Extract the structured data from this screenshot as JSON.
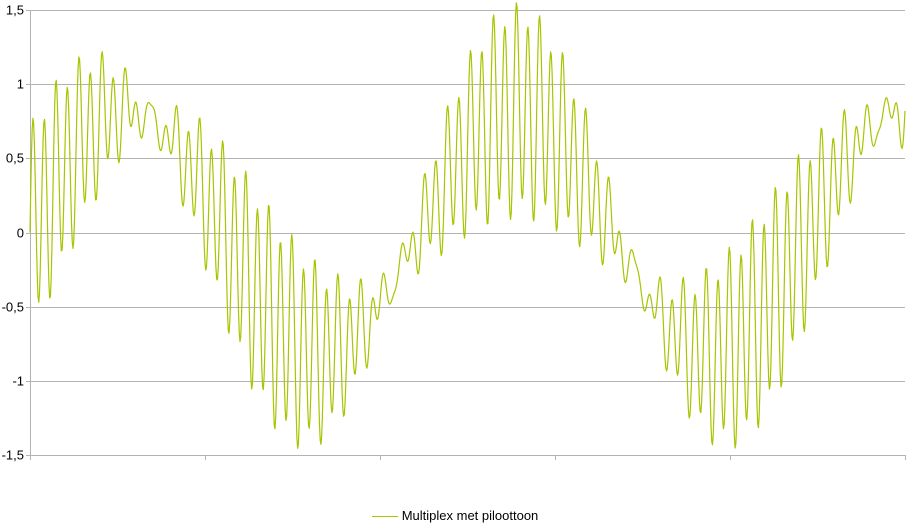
{
  "chart_data": {
    "type": "line",
    "title": "",
    "xlabel": "",
    "ylabel": "",
    "ylim": [
      -1.5,
      1.5
    ],
    "yticks": [
      {
        "value": 1.5,
        "label": "1,5"
      },
      {
        "value": 1,
        "label": "1"
      },
      {
        "value": 0.5,
        "label": "0,5"
      },
      {
        "value": 0,
        "label": "0"
      },
      {
        "value": -0.5,
        "label": "-0,5"
      },
      {
        "value": -1,
        "label": "-1"
      },
      {
        "value": -1.5,
        "label": "-1,5"
      }
    ],
    "x_tick_count": 5,
    "grid": true,
    "legend_position": "bottom",
    "series": [
      {
        "name": "Multiplex met piloottoon",
        "color": "#a9c400",
        "sample_count": 1200,
        "components": [
          {
            "kind": "sine",
            "amplitude": 0.82,
            "cycles": 2.25,
            "phase": 0.0
          },
          {
            "kind": "dsb",
            "amplitude": 0.22,
            "carrier_cycles": 76,
            "envelope_cycles": 1.8
          },
          {
            "kind": "pilot",
            "amplitude": 0.1,
            "cycles": 38
          }
        ]
      }
    ]
  }
}
